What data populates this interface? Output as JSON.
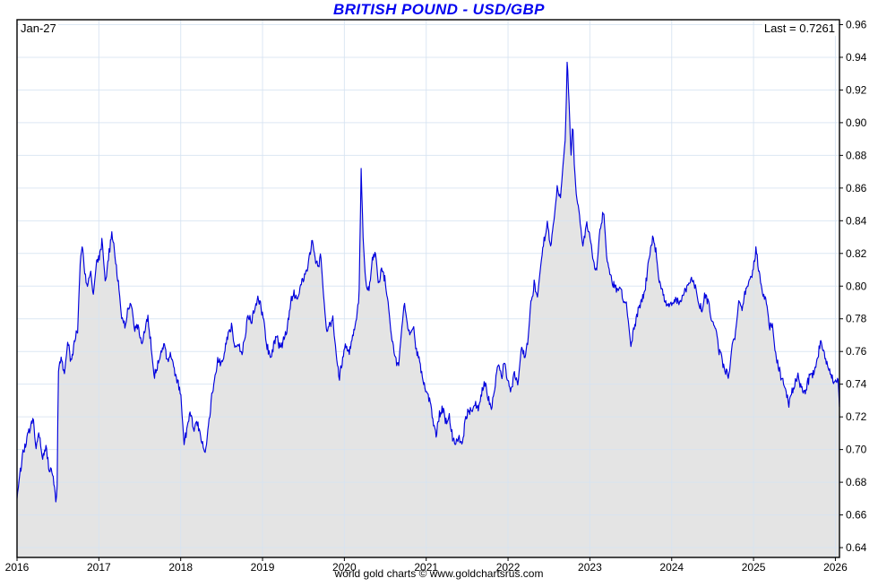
{
  "header": {
    "title": "BRITISH POUND - USD/GBP"
  },
  "annotations": {
    "date_label": "Jan-27",
    "last_label": "Last = 0.7261"
  },
  "footer": {
    "credit": "world gold charts © www.goldchartsrus.com"
  },
  "chart_data": {
    "type": "line",
    "title": "BRITISH POUND - USD/GBP",
    "xlabel": "",
    "ylabel": "",
    "x_ticks": [
      "2016",
      "2017",
      "2018",
      "2019",
      "2020",
      "2021",
      "2022",
      "2023",
      "2024",
      "2025",
      "2026"
    ],
    "y_ticks": [
      "0.64",
      "0.66",
      "0.68",
      "0.70",
      "0.72",
      "0.74",
      "0.76",
      "0.78",
      "0.80",
      "0.82",
      "0.84",
      "0.86",
      "0.88",
      "0.90",
      "0.92",
      "0.94",
      "0.96"
    ],
    "xlim": [
      2016.0,
      2026.05
    ],
    "ylim": [
      0.634,
      0.963
    ],
    "grid": true,
    "legend_position": "none",
    "last_value": 0.7261,
    "colors": {
      "line": "#0000dd",
      "fill": "#e4e4e4",
      "grid": "#d6e3f2",
      "axis": "#000000",
      "title": "#0404f0"
    },
    "series": [
      {
        "name": "USD/GBP",
        "points": [
          [
            2016.0,
            0.67
          ],
          [
            2016.04,
            0.688
          ],
          [
            2016.08,
            0.7
          ],
          [
            2016.12,
            0.706
          ],
          [
            2016.16,
            0.712
          ],
          [
            2016.2,
            0.718
          ],
          [
            2016.23,
            0.7
          ],
          [
            2016.27,
            0.707
          ],
          [
            2016.31,
            0.693
          ],
          [
            2016.35,
            0.699
          ],
          [
            2016.39,
            0.687
          ],
          [
            2016.43,
            0.684
          ],
          [
            2016.46,
            0.676
          ],
          [
            2016.475,
            0.668
          ],
          [
            2016.49,
            0.676
          ],
          [
            2016.505,
            0.748
          ],
          [
            2016.54,
            0.756
          ],
          [
            2016.58,
            0.747
          ],
          [
            2016.62,
            0.766
          ],
          [
            2016.66,
            0.752
          ],
          [
            2016.7,
            0.764
          ],
          [
            2016.74,
            0.772
          ],
          [
            2016.77,
            0.812
          ],
          [
            2016.8,
            0.824
          ],
          [
            2016.83,
            0.806
          ],
          [
            2016.86,
            0.799
          ],
          [
            2016.9,
            0.809
          ],
          [
            2016.93,
            0.794
          ],
          [
            2016.97,
            0.813
          ],
          [
            2017.01,
            0.818
          ],
          [
            2017.04,
            0.828
          ],
          [
            2017.08,
            0.801
          ],
          [
            2017.12,
            0.817
          ],
          [
            2017.16,
            0.831
          ],
          [
            2017.2,
            0.814
          ],
          [
            2017.24,
            0.801
          ],
          [
            2017.28,
            0.779
          ],
          [
            2017.32,
            0.774
          ],
          [
            2017.36,
            0.786
          ],
          [
            2017.4,
            0.789
          ],
          [
            2017.44,
            0.771
          ],
          [
            2017.48,
            0.773
          ],
          [
            2017.52,
            0.763
          ],
          [
            2017.56,
            0.771
          ],
          [
            2017.6,
            0.779
          ],
          [
            2017.64,
            0.761
          ],
          [
            2017.68,
            0.742
          ],
          [
            2017.72,
            0.749
          ],
          [
            2017.76,
            0.758
          ],
          [
            2017.8,
            0.763
          ],
          [
            2017.84,
            0.753
          ],
          [
            2017.88,
            0.759
          ],
          [
            2017.92,
            0.748
          ],
          [
            2017.96,
            0.741
          ],
          [
            2018.0,
            0.735
          ],
          [
            2018.04,
            0.704
          ],
          [
            2018.08,
            0.714
          ],
          [
            2018.12,
            0.723
          ],
          [
            2018.16,
            0.713
          ],
          [
            2018.2,
            0.718
          ],
          [
            2018.24,
            0.711
          ],
          [
            2018.29,
            0.698
          ],
          [
            2018.33,
            0.713
          ],
          [
            2018.38,
            0.734
          ],
          [
            2018.42,
            0.749
          ],
          [
            2018.46,
            0.757
          ],
          [
            2018.5,
            0.755
          ],
          [
            2018.54,
            0.763
          ],
          [
            2018.58,
            0.773
          ],
          [
            2018.62,
            0.779
          ],
          [
            2018.66,
            0.767
          ],
          [
            2018.7,
            0.771
          ],
          [
            2018.74,
            0.761
          ],
          [
            2018.78,
            0.769
          ],
          [
            2018.82,
            0.783
          ],
          [
            2018.86,
            0.777
          ],
          [
            2018.9,
            0.786
          ],
          [
            2018.94,
            0.791
          ],
          [
            2018.98,
            0.787
          ],
          [
            2019.02,
            0.773
          ],
          [
            2019.06,
            0.761
          ],
          [
            2019.1,
            0.753
          ],
          [
            2019.14,
            0.763
          ],
          [
            2019.18,
            0.767
          ],
          [
            2019.22,
            0.759
          ],
          [
            2019.26,
            0.767
          ],
          [
            2019.3,
            0.771
          ],
          [
            2019.34,
            0.787
          ],
          [
            2019.38,
            0.793
          ],
          [
            2019.42,
            0.789
          ],
          [
            2019.46,
            0.795
          ],
          [
            2019.5,
            0.801
          ],
          [
            2019.54,
            0.809
          ],
          [
            2019.58,
            0.821
          ],
          [
            2019.61,
            0.831
          ],
          [
            2019.64,
            0.819
          ],
          [
            2019.68,
            0.813
          ],
          [
            2019.71,
            0.821
          ],
          [
            2019.74,
            0.799
          ],
          [
            2019.78,
            0.774
          ],
          [
            2019.82,
            0.777
          ],
          [
            2019.86,
            0.781
          ],
          [
            2019.9,
            0.763
          ],
          [
            2019.94,
            0.746
          ],
          [
            2019.98,
            0.759
          ],
          [
            2020.02,
            0.767
          ],
          [
            2020.06,
            0.763
          ],
          [
            2020.1,
            0.773
          ],
          [
            2020.14,
            0.781
          ],
          [
            2020.18,
            0.796
          ],
          [
            2020.205,
            0.872
          ],
          [
            2020.23,
            0.828
          ],
          [
            2020.26,
            0.803
          ],
          [
            2020.3,
            0.799
          ],
          [
            2020.34,
            0.814
          ],
          [
            2020.38,
            0.821
          ],
          [
            2020.42,
            0.799
          ],
          [
            2020.46,
            0.808
          ],
          [
            2020.5,
            0.801
          ],
          [
            2020.54,
            0.787
          ],
          [
            2020.58,
            0.766
          ],
          [
            2020.62,
            0.753
          ],
          [
            2020.66,
            0.749
          ],
          [
            2020.7,
            0.773
          ],
          [
            2020.73,
            0.788
          ],
          [
            2020.77,
            0.773
          ],
          [
            2020.81,
            0.767
          ],
          [
            2020.85,
            0.773
          ],
          [
            2020.88,
            0.756
          ],
          [
            2020.92,
            0.749
          ],
          [
            2020.96,
            0.737
          ],
          [
            2021.0,
            0.733
          ],
          [
            2021.04,
            0.727
          ],
          [
            2021.08,
            0.716
          ],
          [
            2021.12,
            0.707
          ],
          [
            2021.16,
            0.723
          ],
          [
            2021.2,
            0.727
          ],
          [
            2021.24,
            0.719
          ],
          [
            2021.28,
            0.721
          ],
          [
            2021.32,
            0.711
          ],
          [
            2021.36,
            0.704
          ],
          [
            2021.4,
            0.709
          ],
          [
            2021.44,
            0.704
          ],
          [
            2021.48,
            0.719
          ],
          [
            2021.52,
            0.725
          ],
          [
            2021.56,
            0.721
          ],
          [
            2021.6,
            0.728
          ],
          [
            2021.64,
            0.724
          ],
          [
            2021.68,
            0.735
          ],
          [
            2021.72,
            0.741
          ],
          [
            2021.76,
            0.731
          ],
          [
            2021.8,
            0.725
          ],
          [
            2021.84,
            0.741
          ],
          [
            2021.88,
            0.754
          ],
          [
            2021.92,
            0.746
          ],
          [
            2021.96,
            0.754
          ],
          [
            2022.0,
            0.741
          ],
          [
            2022.04,
            0.735
          ],
          [
            2022.08,
            0.746
          ],
          [
            2022.12,
            0.739
          ],
          [
            2022.16,
            0.761
          ],
          [
            2022.2,
            0.756
          ],
          [
            2022.24,
            0.764
          ],
          [
            2022.28,
            0.791
          ],
          [
            2022.32,
            0.801
          ],
          [
            2022.36,
            0.793
          ],
          [
            2022.4,
            0.813
          ],
          [
            2022.44,
            0.826
          ],
          [
            2022.48,
            0.836
          ],
          [
            2022.52,
            0.823
          ],
          [
            2022.56,
            0.839
          ],
          [
            2022.6,
            0.859
          ],
          [
            2022.64,
            0.853
          ],
          [
            2022.67,
            0.873
          ],
          [
            2022.7,
            0.891
          ],
          [
            2022.725,
            0.937
          ],
          [
            2022.75,
            0.906
          ],
          [
            2022.77,
            0.879
          ],
          [
            2022.79,
            0.901
          ],
          [
            2022.81,
            0.874
          ],
          [
            2022.84,
            0.851
          ],
          [
            2022.88,
            0.839
          ],
          [
            2022.92,
            0.821
          ],
          [
            2022.96,
            0.835
          ],
          [
            2023.0,
            0.827
          ],
          [
            2023.04,
            0.811
          ],
          [
            2023.08,
            0.807
          ],
          [
            2023.12,
            0.833
          ],
          [
            2023.17,
            0.845
          ],
          [
            2023.21,
            0.813
          ],
          [
            2023.25,
            0.807
          ],
          [
            2023.29,
            0.801
          ],
          [
            2023.33,
            0.795
          ],
          [
            2023.37,
            0.801
          ],
          [
            2023.41,
            0.791
          ],
          [
            2023.45,
            0.787
          ],
          [
            2023.5,
            0.764
          ],
          [
            2023.54,
            0.771
          ],
          [
            2023.58,
            0.781
          ],
          [
            2023.62,
            0.787
          ],
          [
            2023.66,
            0.793
          ],
          [
            2023.7,
            0.807
          ],
          [
            2023.74,
            0.821
          ],
          [
            2023.77,
            0.828
          ],
          [
            2023.81,
            0.819
          ],
          [
            2023.85,
            0.801
          ],
          [
            2023.89,
            0.794
          ],
          [
            2023.93,
            0.787
          ],
          [
            2023.97,
            0.784
          ],
          [
            2024.01,
            0.787
          ],
          [
            2024.05,
            0.791
          ],
          [
            2024.09,
            0.787
          ],
          [
            2024.13,
            0.79
          ],
          [
            2024.17,
            0.793
          ],
          [
            2024.21,
            0.797
          ],
          [
            2024.25,
            0.802
          ],
          [
            2024.29,
            0.796
          ],
          [
            2024.33,
            0.787
          ],
          [
            2024.37,
            0.785
          ],
          [
            2024.41,
            0.793
          ],
          [
            2024.45,
            0.788
          ],
          [
            2024.5,
            0.775
          ],
          [
            2024.54,
            0.771
          ],
          [
            2024.58,
            0.758
          ],
          [
            2024.62,
            0.754
          ],
          [
            2024.66,
            0.748
          ],
          [
            2024.7,
            0.745
          ],
          [
            2024.74,
            0.765
          ],
          [
            2024.78,
            0.771
          ],
          [
            2024.82,
            0.791
          ],
          [
            2024.86,
            0.785
          ],
          [
            2024.9,
            0.795
          ],
          [
            2024.94,
            0.801
          ],
          [
            2024.98,
            0.806
          ],
          [
            2025.03,
            0.822
          ],
          [
            2025.07,
            0.807
          ],
          [
            2025.11,
            0.797
          ],
          [
            2025.15,
            0.791
          ],
          [
            2025.19,
            0.775
          ],
          [
            2025.23,
            0.777
          ],
          [
            2025.27,
            0.757
          ],
          [
            2025.31,
            0.749
          ],
          [
            2025.35,
            0.741
          ],
          [
            2025.39,
            0.735
          ],
          [
            2025.43,
            0.728
          ],
          [
            2025.47,
            0.737
          ],
          [
            2025.51,
            0.743
          ],
          [
            2025.55,
            0.747
          ],
          [
            2025.58,
            0.739
          ],
          [
            2025.62,
            0.737
          ],
          [
            2025.66,
            0.742
          ],
          [
            2025.7,
            0.746
          ],
          [
            2025.74,
            0.749
          ],
          [
            2025.78,
            0.756
          ],
          [
            2025.82,
            0.766
          ],
          [
            2025.86,
            0.759
          ],
          [
            2025.9,
            0.751
          ],
          [
            2025.94,
            0.745
          ],
          [
            2025.98,
            0.741
          ],
          [
            2026.01,
            0.742
          ],
          [
            2026.03,
            0.748
          ],
          [
            2026.05,
            0.7261
          ]
        ]
      }
    ]
  }
}
